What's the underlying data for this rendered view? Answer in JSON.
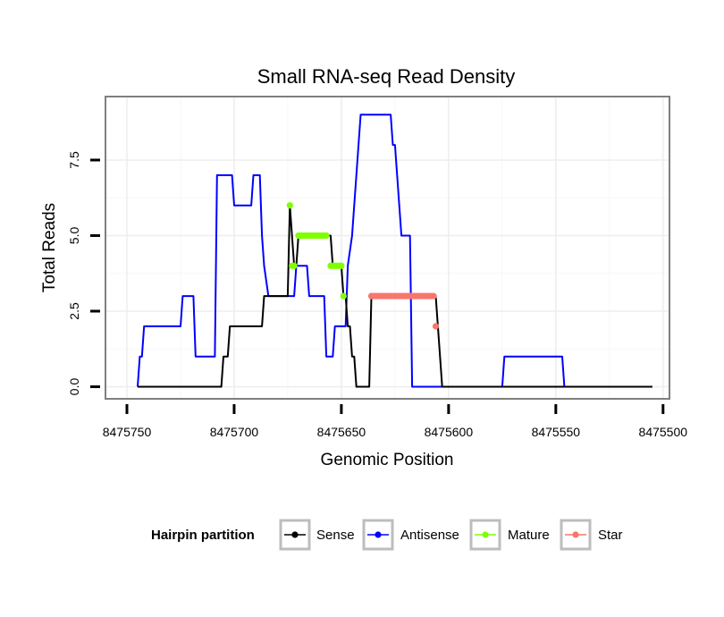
{
  "chart_data": {
    "type": "line",
    "title": "Small RNA-seq Read Density",
    "xlabel": "Genomic Position",
    "ylabel": "Total Reads",
    "x_reversed": true,
    "xlim": [
      8475760,
      8475497
    ],
    "ylim": [
      -0.4,
      9.6
    ],
    "x_ticks": [
      8475750,
      8475700,
      8475650,
      8475600,
      8475550,
      8475500
    ],
    "x_tick_labels": [
      "8475750",
      "8475700",
      "8475650",
      "8475600",
      "8475550",
      "8475500"
    ],
    "y_ticks": [
      0,
      2.5,
      5,
      7.5
    ],
    "y_tick_labels": [
      "0.0",
      "2.5",
      "5.0",
      "7.5"
    ],
    "grid": true,
    "legend": {
      "title": "Hairpin partition",
      "position": "bottom",
      "entries": [
        {
          "name": "Sense",
          "color": "#000000"
        },
        {
          "name": "Antisense",
          "color": "#0000ff"
        },
        {
          "name": "Mature",
          "color": "#7fff00"
        },
        {
          "name": "Star",
          "color": "#f8766d"
        }
      ]
    },
    "series": [
      {
        "name": "Antisense",
        "color": "#0000ff",
        "style": "line",
        "x": [
          8475745,
          8475744,
          8475743,
          8475742,
          8475741,
          8475725,
          8475724,
          8475719,
          8475718,
          8475709,
          8475708,
          8475701,
          8475700,
          8475692,
          8475691,
          8475688,
          8475687,
          8475686,
          8475684,
          8475683,
          8475672,
          8475671,
          8475666,
          8475665,
          8475658,
          8475657,
          8475656,
          8475654,
          8475653,
          8475648,
          8475647,
          8475645,
          8475644,
          8475643,
          8475642,
          8475641,
          8475627,
          8475626,
          8475625,
          8475624,
          8475623,
          8475622,
          8475618,
          8475617,
          8475601,
          8475575,
          8475574,
          8475547,
          8475546,
          8475505
        ],
        "y": [
          0,
          1,
          1,
          2,
          2,
          2,
          3,
          3,
          1,
          1,
          7,
          7,
          6,
          6,
          7,
          7,
          5,
          4,
          3,
          3,
          3,
          4,
          4,
          3,
          3,
          1,
          1,
          1,
          2,
          2,
          4,
          5,
          6,
          7,
          8,
          9,
          9,
          8,
          8,
          7,
          6,
          5,
          5,
          0,
          0,
          0,
          1,
          1,
          0,
          0
        ]
      },
      {
        "name": "Sense",
        "color": "#000000",
        "style": "line",
        "x": [
          8475745,
          8475706,
          8475705,
          8475703,
          8475702,
          8475687,
          8475686,
          8475675,
          8475674,
          8475673,
          8475672,
          8475671,
          8475670,
          8475669,
          8475658,
          8475657,
          8475655,
          8475654,
          8475652,
          8475651,
          8475650,
          8475649,
          8475648,
          8475647,
          8475646,
          8475645,
          8475644,
          8475643,
          8475642,
          8475641,
          8475640,
          8475639,
          8475638,
          8475637,
          8475636,
          8475635,
          8475634,
          8475633,
          8475632,
          8475607,
          8475606,
          8475605,
          8475604,
          8475603,
          8475602,
          8475601,
          8475505
        ],
        "y": [
          0,
          0,
          1,
          1,
          2,
          2,
          3,
          3,
          6,
          5,
          4,
          4,
          5,
          5,
          5,
          5,
          5,
          4,
          4,
          4,
          4,
          3,
          3,
          2,
          2,
          1,
          1,
          0,
          0,
          0,
          0,
          0,
          0,
          0,
          3,
          3,
          3,
          3,
          3,
          3,
          3,
          2,
          1,
          0,
          0,
          0,
          0
        ]
      },
      {
        "name": "Mature",
        "color": "#7fff00",
        "style": "points",
        "x": [
          8475674,
          8475673,
          8475672,
          8475670,
          8475669,
          8475668,
          8475667,
          8475666,
          8475665,
          8475664,
          8475663,
          8475662,
          8475661,
          8475660,
          8475659,
          8475658,
          8475657,
          8475655,
          8475654,
          8475653,
          8475652,
          8475651,
          8475650,
          8475649
        ],
        "y": [
          6,
          4,
          4,
          5,
          5,
          5,
          5,
          5,
          5,
          5,
          5,
          5,
          5,
          5,
          5,
          5,
          5,
          4,
          4,
          4,
          4,
          4,
          4,
          3
        ]
      },
      {
        "name": "Star",
        "color": "#f8766d",
        "style": "points",
        "x": [
          8475636,
          8475635,
          8475634,
          8475633,
          8475632,
          8475631,
          8475630,
          8475629,
          8475628,
          8475627,
          8475626,
          8475625,
          8475624,
          8475623,
          8475622,
          8475621,
          8475620,
          8475619,
          8475618,
          8475617,
          8475616,
          8475615,
          8475614,
          8475613,
          8475612,
          8475611,
          8475610,
          8475609,
          8475608,
          8475607,
          8475606
        ],
        "y": [
          3,
          3,
          3,
          3,
          3,
          3,
          3,
          3,
          3,
          3,
          3,
          3,
          3,
          3,
          3,
          3,
          3,
          3,
          3,
          3,
          3,
          3,
          3,
          3,
          3,
          3,
          3,
          3,
          3,
          3,
          2
        ]
      }
    ]
  }
}
